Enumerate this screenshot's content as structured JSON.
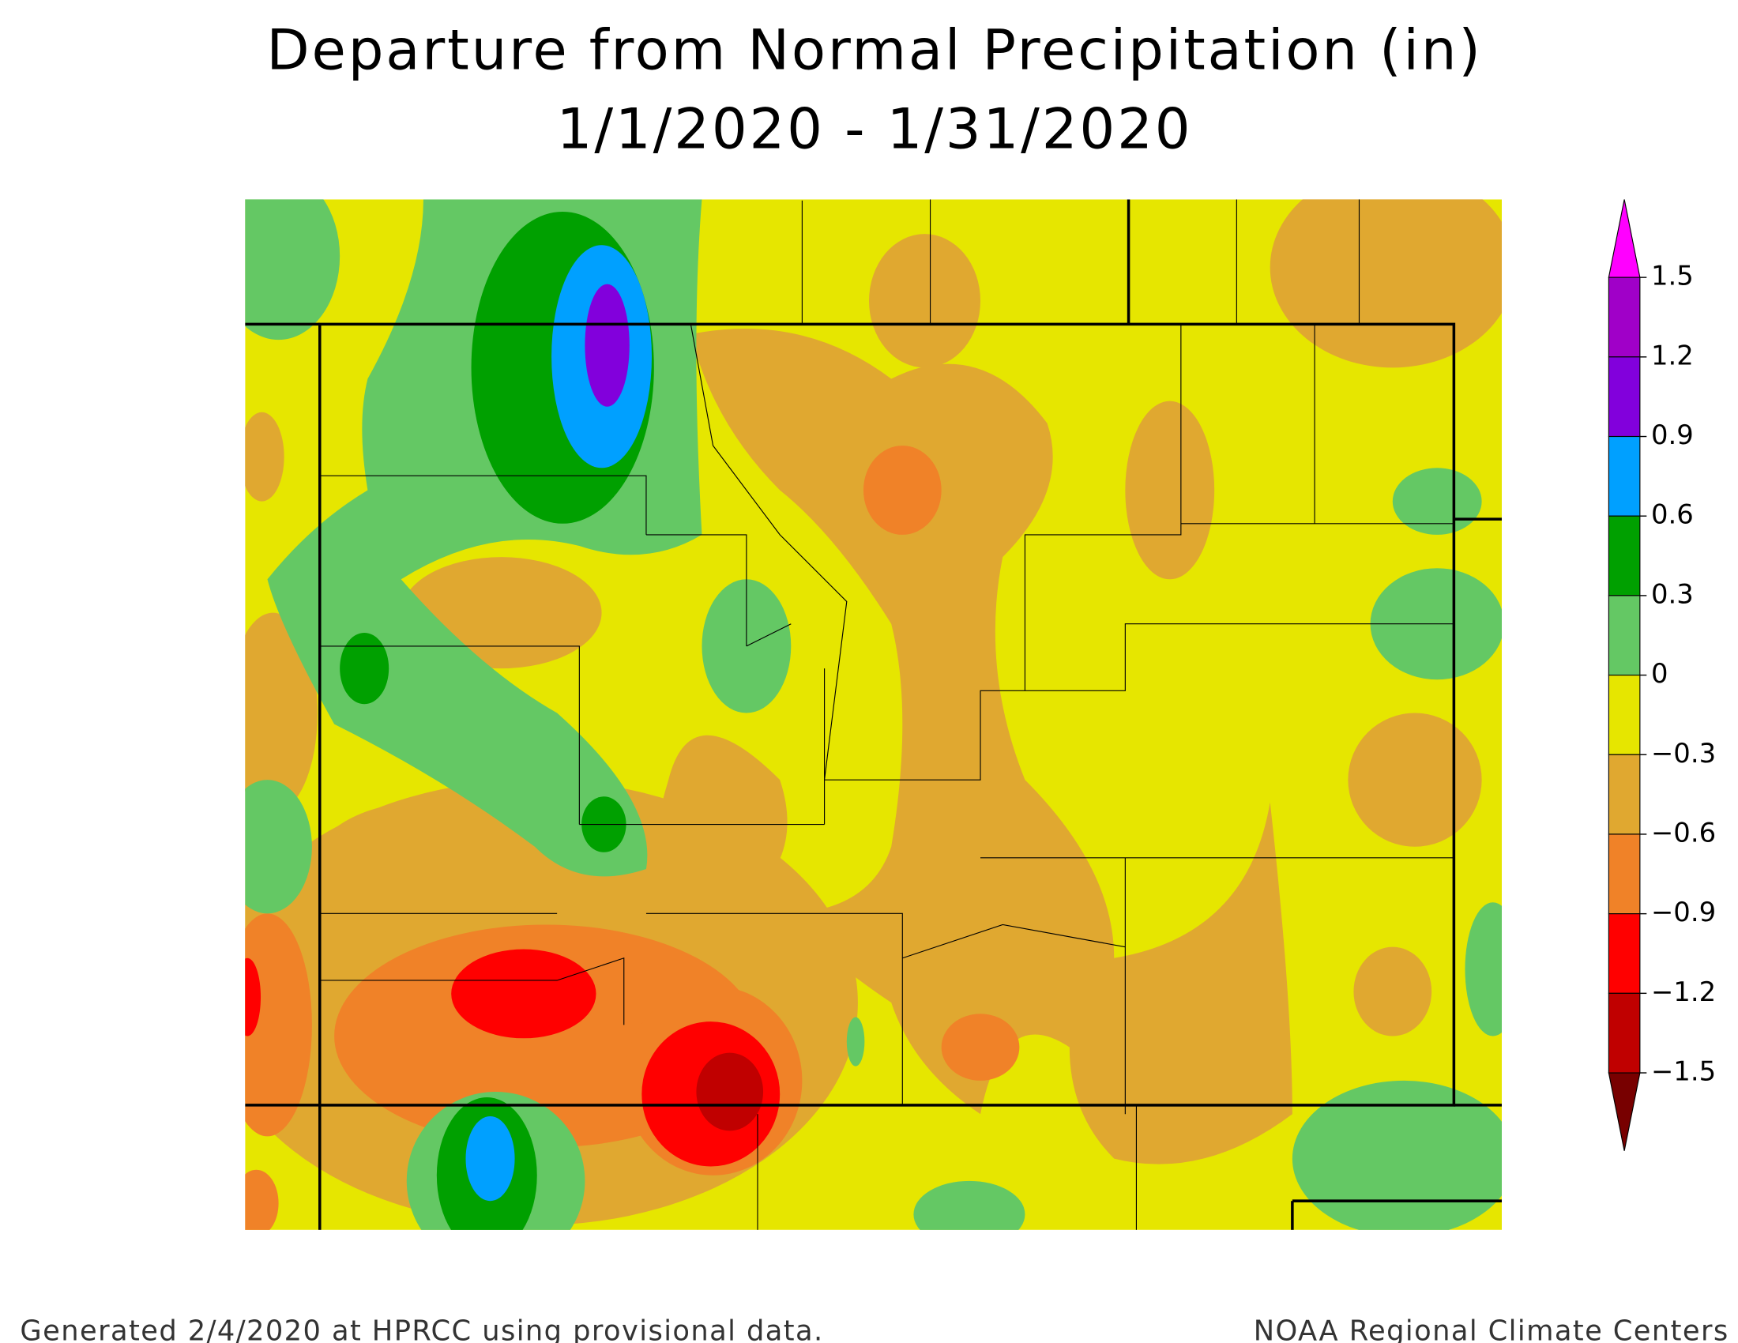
{
  "title": [
    "Departure from Normal Precipitation (in)",
    "1/1/2020 - 1/31/2020"
  ],
  "legend": {
    "levels": [
      1.5,
      1.2,
      0.9,
      0.6,
      0.3,
      0,
      {
        "value": -0.3,
        "label": "−0.3"
      },
      {
        "value": -0.6,
        "label": "−0.6"
      },
      {
        "value": -0.9,
        "label": "−0.9"
      },
      {
        "value": -1.2,
        "label": "−1.2"
      },
      {
        "value": -1.5,
        "label": "−1.5"
      }
    ],
    "colors": [
      "#ff00ff",
      "#a000c8",
      "#8200dc",
      "#00a0ff",
      "#00a000",
      "#64c864",
      "#e6e600",
      "#e0a830",
      "#f08228",
      "#ff0000",
      "#c00000",
      "#780000"
    ]
  },
  "footer": {
    "left": "Generated 2/4/2020 at HPRCC using provisional data.",
    "right": "NOAA Regional Climate Centers"
  }
}
